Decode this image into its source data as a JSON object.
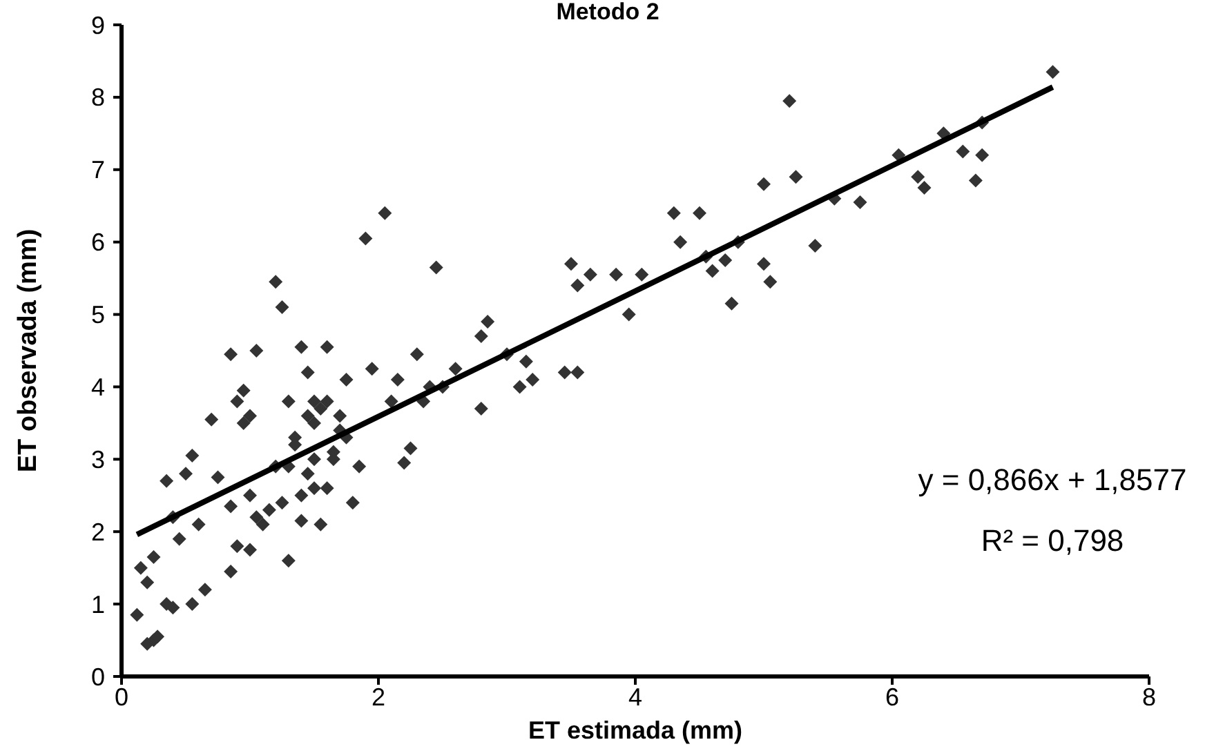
{
  "chart_data": {
    "type": "scatter",
    "title": "Metodo 2",
    "xlabel": "ET estimada (mm)",
    "ylabel": "ET observada (mm)",
    "xlim": [
      0,
      8
    ],
    "xticks": [
      0,
      2,
      4,
      6,
      8
    ],
    "ylim": [
      0,
      9
    ],
    "yticks": [
      0,
      1,
      2,
      3,
      4,
      5,
      6,
      7,
      8,
      9
    ],
    "grid": false,
    "marker": "diamond",
    "series": [
      {
        "color": "#333333",
        "x": [
          0.12,
          0.15,
          0.2,
          0.25,
          0.28,
          0.2,
          0.25,
          0.35,
          0.4,
          0.55,
          0.35,
          0.45,
          0.4,
          0.5,
          0.55,
          0.65,
          0.75,
          0.7,
          0.85,
          0.85,
          0.85,
          0.9,
          0.95,
          0.95,
          0.9,
          1.0,
          1.0,
          1.05,
          1.05,
          1.1,
          1.2,
          1.25,
          1.25,
          1.3,
          1.3,
          1.35,
          1.4,
          1.4,
          1.45,
          1.5,
          1.5,
          1.55,
          1.6,
          1.6,
          1.65,
          1.7,
          1.75,
          1.8,
          1.85,
          1.9,
          1.95,
          2.05,
          2.1,
          2.15,
          2.2,
          2.25,
          2.3,
          2.35,
          2.45,
          2.4,
          2.5,
          2.6,
          2.8,
          2.85,
          2.8,
          3.0,
          3.1,
          3.15,
          3.2,
          3.45,
          3.5,
          3.55,
          3.55,
          3.65,
          3.85,
          3.95,
          4.05,
          4.3,
          4.35,
          4.5,
          4.55,
          4.6,
          4.7,
          4.75,
          4.8,
          5.0,
          5.0,
          5.05,
          5.2,
          5.25,
          5.4,
          5.55,
          5.75,
          6.05,
          6.2,
          6.25,
          6.4,
          6.55,
          6.65,
          6.7,
          6.7,
          7.25,
          1.3,
          1.35,
          1.4,
          1.45,
          1.5,
          1.55,
          1.6,
          1.65,
          1.45,
          1.5,
          1.2,
          1.15,
          1.0,
          0.6,
          1.7,
          1.75
        ],
        "values": [
          0.85,
          1.5,
          0.45,
          0.5,
          0.55,
          1.3,
          1.65,
          1.0,
          0.95,
          1.0,
          2.7,
          1.9,
          2.2,
          2.8,
          3.05,
          1.2,
          2.75,
          3.55,
          1.45,
          2.35,
          4.45,
          3.8,
          3.95,
          3.5,
          1.8,
          1.75,
          3.6,
          2.2,
          4.5,
          2.1,
          5.45,
          5.1,
          2.4,
          1.6,
          3.8,
          3.3,
          4.55,
          2.15,
          4.2,
          3.5,
          2.6,
          2.1,
          3.8,
          4.55,
          3.0,
          3.4,
          4.1,
          2.4,
          2.9,
          6.05,
          4.25,
          6.4,
          3.8,
          4.1,
          2.95,
          3.15,
          4.45,
          3.8,
          5.65,
          4.0,
          4.0,
          4.25,
          4.7,
          4.9,
          3.7,
          4.45,
          4.0,
          4.35,
          4.1,
          4.2,
          5.7,
          5.4,
          4.2,
          5.55,
          5.55,
          5.0,
          5.55,
          6.4,
          6.0,
          6.4,
          5.8,
          5.6,
          5.75,
          5.15,
          6.0,
          6.8,
          5.7,
          5.45,
          7.95,
          6.9,
          5.95,
          6.6,
          6.55,
          7.2,
          6.9,
          6.75,
          7.5,
          7.25,
          6.85,
          7.2,
          7.65,
          8.35,
          2.9,
          3.2,
          2.5,
          3.6,
          3.0,
          3.7,
          2.6,
          3.1,
          2.8,
          3.8,
          2.9,
          2.3,
          2.5,
          2.1,
          3.6,
          3.3
        ]
      },
      {
        "type": "line",
        "color": "#000000",
        "marker": "none",
        "x": [
          0.12,
          7.25
        ],
        "values": [
          1.96,
          8.14
        ]
      }
    ],
    "annotations": [
      "y = 0,866x + 1,8577",
      "R² = 0,798"
    ]
  }
}
